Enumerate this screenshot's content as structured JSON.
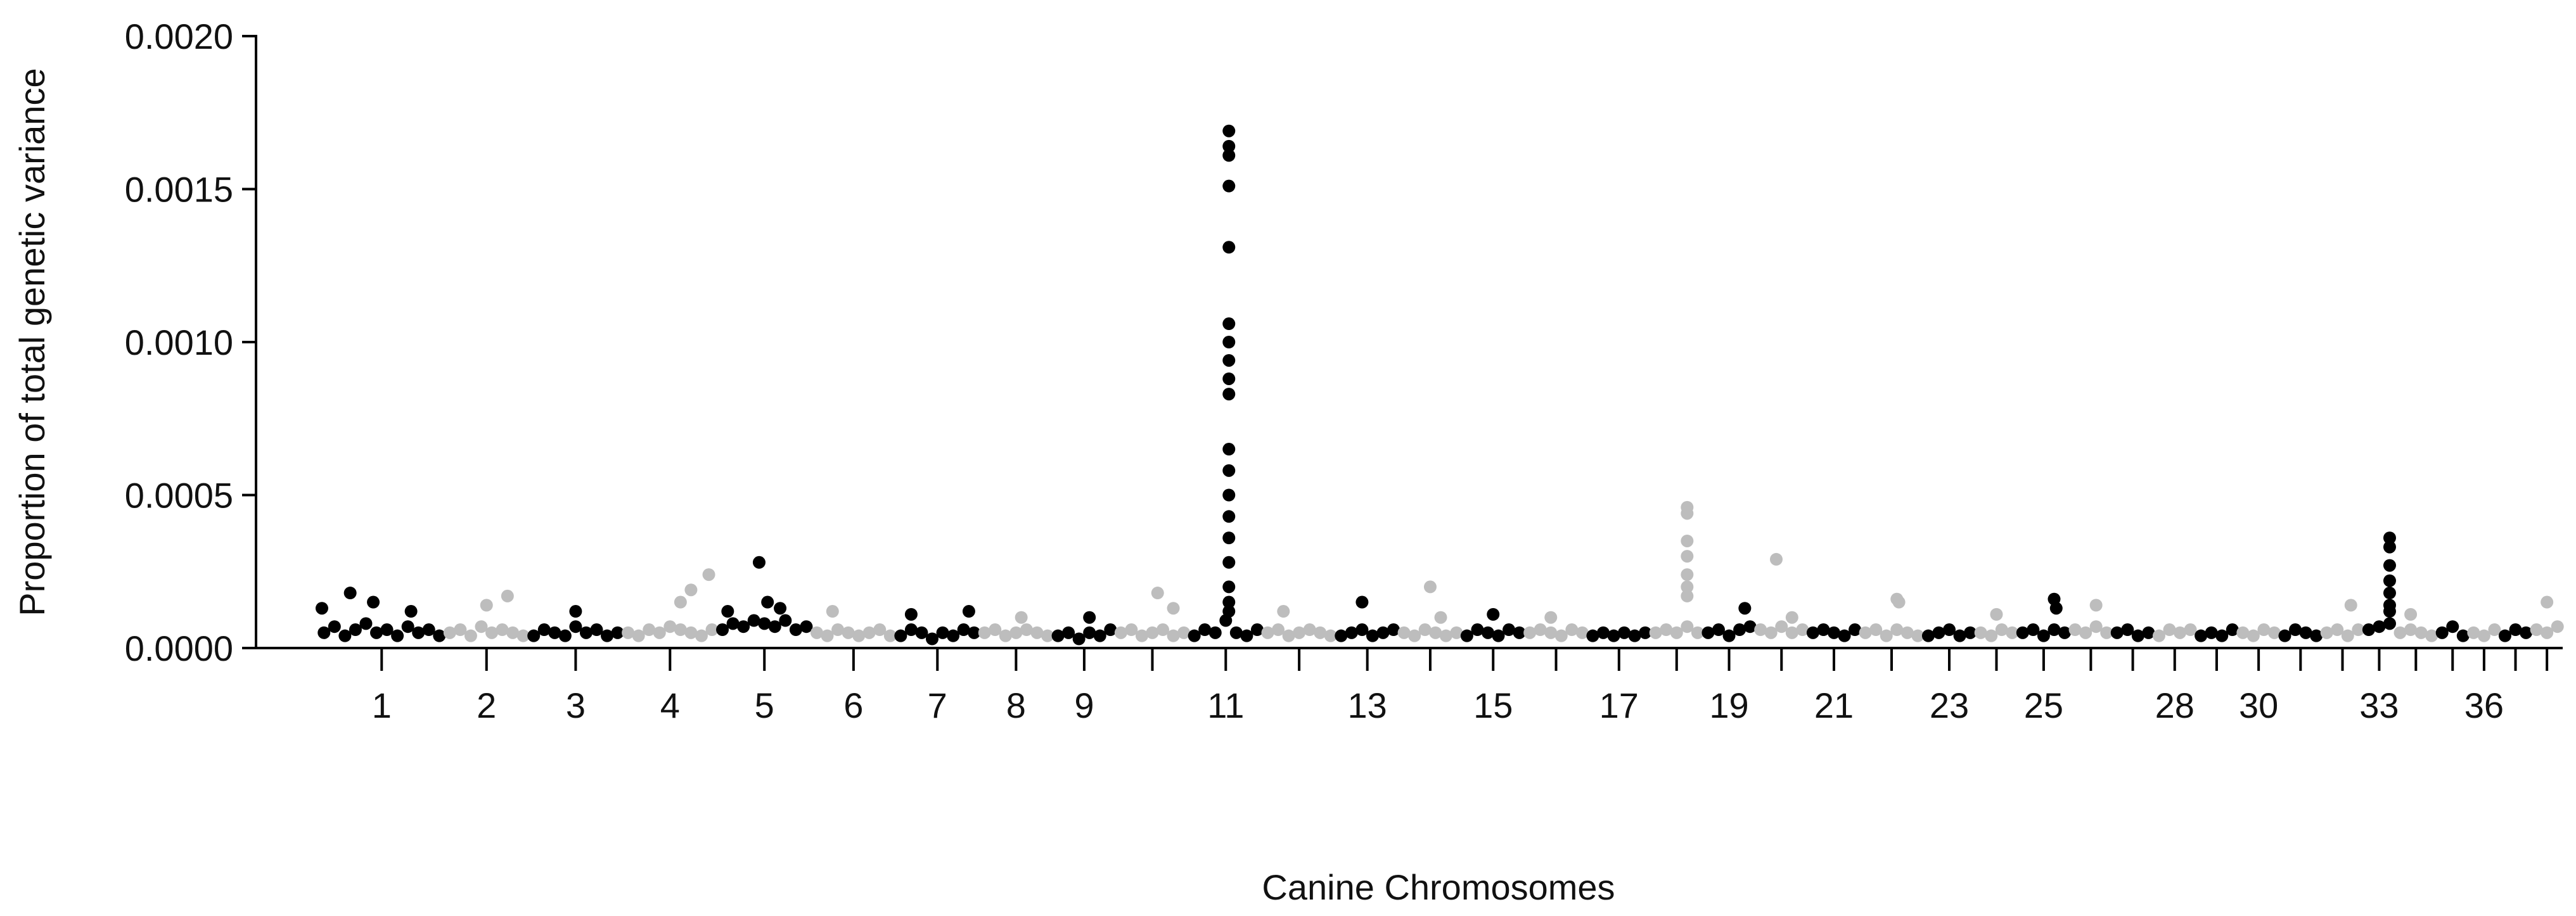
{
  "chart_data": {
    "type": "manhattan",
    "y_label": "Proportion of total genetic variance",
    "x_label": "Canine Chromosomes",
    "ylim": [
      0,
      0.002
    ],
    "yticks": [
      {
        "value": 0,
        "label": "0.0000"
      },
      {
        "value": 0.0005,
        "label": "0.0005"
      },
      {
        "value": 0.001,
        "label": "0.0010"
      },
      {
        "value": 0.0015,
        "label": "0.0015"
      },
      {
        "value": 0.002,
        "label": "0.0020"
      }
    ],
    "categories": [
      "1",
      "2",
      "3",
      "4",
      "5",
      "6",
      "7",
      "8",
      "9",
      null,
      "11",
      null,
      "13",
      null,
      "15",
      null,
      "17",
      null,
      "19",
      null,
      "21",
      null,
      "23",
      null,
      "25",
      null,
      null,
      "28",
      null,
      "30",
      null,
      null,
      "33",
      null,
      null,
      "36",
      null,
      null
    ],
    "series": [
      {
        "color": "#000000",
        "x": [
          5,
          15,
          25,
          35,
          45,
          55,
          65,
          75,
          85,
          95,
          105,
          115,
          3,
          30,
          52,
          88
        ],
        "values": [
          5e-05,
          7e-05,
          4e-05,
          6e-05,
          8e-05,
          5e-05,
          6e-05,
          4e-05,
          7e-05,
          5e-05,
          6e-05,
          4e-05,
          0.00013,
          0.00018,
          0.00015,
          0.00012
        ]
      },
      {
        "color": "#bdbdbd",
        "x": [
          5,
          15,
          25,
          35,
          45,
          55,
          65,
          75,
          40,
          60
        ],
        "values": [
          5e-05,
          6e-05,
          4e-05,
          7e-05,
          5e-05,
          6e-05,
          5e-05,
          4e-05,
          0.00014,
          0.00017
        ]
      },
      {
        "color": "#000000",
        "x": [
          5,
          15,
          25,
          35,
          45,
          55,
          65,
          75,
          85,
          45
        ],
        "values": [
          4e-05,
          6e-05,
          5e-05,
          4e-05,
          7e-05,
          5e-05,
          6e-05,
          4e-05,
          5e-05,
          0.00012
        ]
      },
      {
        "color": "#bdbdbd",
        "x": [
          5,
          15,
          25,
          35,
          45,
          55,
          65,
          75,
          85,
          55,
          65,
          82
        ],
        "values": [
          5e-05,
          4e-05,
          6e-05,
          5e-05,
          7e-05,
          6e-05,
          5e-05,
          4e-05,
          6e-05,
          0.00015,
          0.00019,
          0.00024
        ]
      },
      {
        "color": "#000000",
        "x": [
          5,
          15,
          25,
          35,
          45,
          55,
          65,
          75,
          85,
          10,
          40,
          48,
          60
        ],
        "values": [
          6e-05,
          8e-05,
          7e-05,
          9e-05,
          8e-05,
          7e-05,
          9e-05,
          6e-05,
          7e-05,
          0.00012,
          0.00028,
          0.00015,
          0.00013
        ]
      },
      {
        "color": "#bdbdbd",
        "x": [
          5,
          15,
          25,
          35,
          45,
          55,
          65,
          75,
          20
        ],
        "values": [
          5e-05,
          4e-05,
          6e-05,
          5e-05,
          4e-05,
          5e-05,
          6e-05,
          4e-05,
          0.00012
        ]
      },
      {
        "color": "#000000",
        "x": [
          5,
          15,
          25,
          35,
          45,
          55,
          65,
          75,
          15,
          70
        ],
        "values": [
          4e-05,
          6e-05,
          5e-05,
          3e-05,
          5e-05,
          4e-05,
          6e-05,
          5e-05,
          0.00011,
          0.00012
        ]
      },
      {
        "color": "#bdbdbd",
        "x": [
          5,
          15,
          25,
          35,
          45,
          55,
          65,
          40
        ],
        "values": [
          5e-05,
          6e-05,
          4e-05,
          5e-05,
          6e-05,
          5e-05,
          4e-05,
          0.0001
        ]
      },
      {
        "color": "#000000",
        "x": [
          5,
          15,
          25,
          35,
          45,
          55,
          35
        ],
        "values": [
          4e-05,
          5e-05,
          3e-05,
          5e-05,
          4e-05,
          6e-05,
          0.0001
        ]
      },
      {
        "color": "#bdbdbd",
        "x": [
          5,
          15,
          25,
          35,
          45,
          55,
          65,
          40,
          55
        ],
        "values": [
          5e-05,
          6e-05,
          4e-05,
          5e-05,
          6e-05,
          4e-05,
          5e-05,
          0.00018,
          0.00013
        ]
      },
      {
        "color": "#000000",
        "x": [
          5,
          15,
          25,
          35,
          45,
          55,
          65,
          38,
          38,
          38,
          38,
          38,
          38,
          38,
          38,
          38,
          38,
          38,
          38,
          38,
          38,
          38,
          38,
          38,
          38,
          38
        ],
        "values": [
          4e-05,
          6e-05,
          5e-05,
          9e-05,
          5e-05,
          4e-05,
          6e-05,
          0.00169,
          0.00164,
          0.00161,
          0.00151,
          0.00131,
          0.00106,
          0.001,
          0.00094,
          0.00088,
          0.00083,
          0.00065,
          0.00058,
          0.0005,
          0.00043,
          0.00036,
          0.00028,
          0.0002,
          0.00015,
          0.00012
        ]
      },
      {
        "color": "#bdbdbd",
        "x": [
          5,
          15,
          25,
          35,
          45,
          55,
          65,
          20
        ],
        "values": [
          5e-05,
          6e-05,
          4e-05,
          5e-05,
          6e-05,
          5e-05,
          4e-05,
          0.00012
        ]
      },
      {
        "color": "#000000",
        "x": [
          5,
          15,
          25,
          35,
          45,
          55,
          25
        ],
        "values": [
          4e-05,
          5e-05,
          6e-05,
          4e-05,
          5e-05,
          6e-05,
          0.00015
        ]
      },
      {
        "color": "#bdbdbd",
        "x": [
          5,
          15,
          25,
          35,
          45,
          55,
          30,
          40
        ],
        "values": [
          5e-05,
          4e-05,
          6e-05,
          5e-05,
          4e-05,
          5e-05,
          0.0002,
          0.0001
        ]
      },
      {
        "color": "#000000",
        "x": [
          5,
          15,
          25,
          35,
          45,
          55,
          30
        ],
        "values": [
          4e-05,
          6e-05,
          5e-05,
          4e-05,
          6e-05,
          5e-05,
          0.00011
        ]
      },
      {
        "color": "#bdbdbd",
        "x": [
          5,
          15,
          25,
          35,
          45,
          55,
          25
        ],
        "values": [
          5e-05,
          6e-05,
          5e-05,
          4e-05,
          6e-05,
          5e-05,
          0.0001
        ]
      },
      {
        "color": "#000000",
        "x": [
          5,
          15,
          25,
          35,
          45,
          55
        ],
        "values": [
          4e-05,
          5e-05,
          4e-05,
          5e-05,
          4e-05,
          5e-05
        ]
      },
      {
        "color": "#bdbdbd",
        "x": [
          5,
          15,
          25,
          35,
          45,
          35,
          35,
          35,
          35,
          35,
          35,
          35
        ],
        "values": [
          5e-05,
          6e-05,
          5e-05,
          7e-05,
          5e-05,
          0.00046,
          0.00044,
          0.00035,
          0.0003,
          0.00024,
          0.0002,
          0.00017
        ]
      },
      {
        "color": "#000000",
        "x": [
          5,
          15,
          25,
          35,
          45,
          40
        ],
        "values": [
          5e-05,
          6e-05,
          4e-05,
          6e-05,
          7e-05,
          0.00013
        ]
      },
      {
        "color": "#bdbdbd",
        "x": [
          5,
          15,
          25,
          35,
          45,
          20,
          35
        ],
        "values": [
          6e-05,
          5e-05,
          7e-05,
          5e-05,
          6e-05,
          0.00029,
          0.0001
        ]
      },
      {
        "color": "#000000",
        "x": [
          5,
          15,
          25,
          35,
          45
        ],
        "values": [
          5e-05,
          6e-05,
          5e-05,
          4e-05,
          6e-05
        ]
      },
      {
        "color": "#bdbdbd",
        "x": [
          5,
          15,
          25,
          35,
          45,
          55,
          35,
          37
        ],
        "values": [
          5e-05,
          6e-05,
          4e-05,
          6e-05,
          5e-05,
          4e-05,
          0.00016,
          0.00015
        ]
      },
      {
        "color": "#000000",
        "x": [
          5,
          15,
          25,
          35,
          45
        ],
        "values": [
          4e-05,
          5e-05,
          6e-05,
          4e-05,
          5e-05
        ]
      },
      {
        "color": "#bdbdbd",
        "x": [
          5,
          15,
          25,
          35,
          20
        ],
        "values": [
          5e-05,
          4e-05,
          6e-05,
          5e-05,
          0.00011
        ]
      },
      {
        "color": "#000000",
        "x": [
          5,
          15,
          25,
          35,
          45,
          35,
          37
        ],
        "values": [
          5e-05,
          6e-05,
          4e-05,
          6e-05,
          5e-05,
          0.00016,
          0.00013
        ]
      },
      {
        "color": "#bdbdbd",
        "x": [
          5,
          15,
          25,
          35,
          25
        ],
        "values": [
          6e-05,
          5e-05,
          7e-05,
          5e-05,
          0.00014
        ]
      },
      {
        "color": "#000000",
        "x": [
          5,
          15,
          25,
          35
        ],
        "values": [
          5e-05,
          6e-05,
          4e-05,
          5e-05
        ]
      },
      {
        "color": "#bdbdbd",
        "x": [
          5,
          15,
          25,
          35
        ],
        "values": [
          4e-05,
          6e-05,
          5e-05,
          6e-05
        ]
      },
      {
        "color": "#000000",
        "x": [
          5,
          15,
          25,
          35
        ],
        "values": [
          4e-05,
          5e-05,
          4e-05,
          6e-05
        ]
      },
      {
        "color": "#bdbdbd",
        "x": [
          5,
          15,
          25,
          35
        ],
        "values": [
          5e-05,
          4e-05,
          6e-05,
          5e-05
        ]
      },
      {
        "color": "#000000",
        "x": [
          5,
          15,
          25,
          35
        ],
        "values": [
          4e-05,
          6e-05,
          5e-05,
          4e-05
        ]
      },
      {
        "color": "#bdbdbd",
        "x": [
          5,
          15,
          25,
          35,
          28
        ],
        "values": [
          5e-05,
          6e-05,
          4e-05,
          6e-05,
          0.00014
        ]
      },
      {
        "color": "#000000",
        "x": [
          5,
          15,
          25,
          25,
          25,
          25,
          25,
          25,
          25,
          25
        ],
        "values": [
          6e-05,
          7e-05,
          8e-05,
          0.00036,
          0.00033,
          0.00027,
          0.00022,
          0.00018,
          0.00014,
          0.00012
        ]
      },
      {
        "color": "#bdbdbd",
        "x": [
          5,
          15,
          25,
          35,
          15
        ],
        "values": [
          5e-05,
          6e-05,
          5e-05,
          4e-05,
          0.00011
        ]
      },
      {
        "color": "#000000",
        "x": [
          5,
          15,
          25
        ],
        "values": [
          5e-05,
          7e-05,
          4e-05
        ]
      },
      {
        "color": "#bdbdbd",
        "x": [
          5,
          15,
          25
        ],
        "values": [
          5e-05,
          4e-05,
          6e-05
        ]
      },
      {
        "color": "#000000",
        "x": [
          5,
          15,
          25
        ],
        "values": [
          4e-05,
          6e-05,
          5e-05
        ]
      },
      {
        "color": "#bdbdbd",
        "x": [
          5,
          15,
          25,
          15
        ],
        "values": [
          6e-05,
          5e-05,
          7e-05,
          0.00015
        ]
      }
    ]
  }
}
